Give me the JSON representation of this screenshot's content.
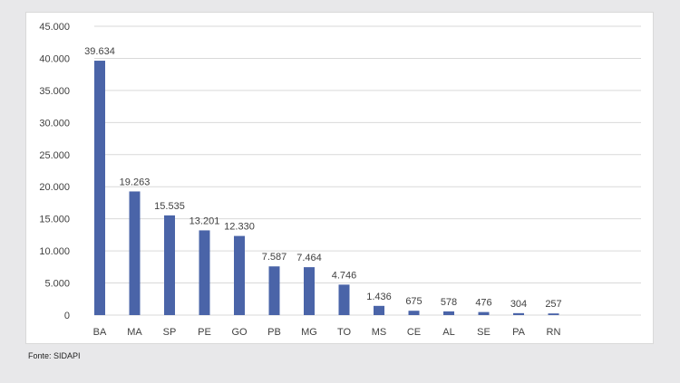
{
  "chart_data": {
    "type": "bar",
    "categories": [
      "BA",
      "MA",
      "SP",
      "PE",
      "GO",
      "PB",
      "MG",
      "TO",
      "MS",
      "CE",
      "AL",
      "SE",
      "PA",
      "RN"
    ],
    "values": [
      39634,
      19263,
      15535,
      13201,
      12330,
      7587,
      7464,
      4746,
      1436,
      675,
      578,
      476,
      304,
      257
    ],
    "value_labels": [
      "39.634",
      "19.263",
      "15.535",
      "13.201",
      "12.330",
      "7.587",
      "7.464",
      "4.746",
      "1.436",
      "675",
      "578",
      "476",
      "304",
      "257"
    ],
    "y_ticks": [
      0,
      5000,
      10000,
      15000,
      20000,
      25000,
      30000,
      35000,
      40000,
      45000
    ],
    "y_tick_labels": [
      "0",
      "5.000",
      "10.000",
      "15.000",
      "20.000",
      "25.000",
      "30.000",
      "35.000",
      "40.000",
      "45.000"
    ],
    "ylim": [
      0,
      45000
    ],
    "title": "",
    "xlabel": "",
    "ylabel": "",
    "grid": true,
    "legend": "none",
    "bar_color": "#4a64a8",
    "grid_color": "#d9d9d9"
  },
  "footer": {
    "source": "Fonte: SIDAPI"
  }
}
